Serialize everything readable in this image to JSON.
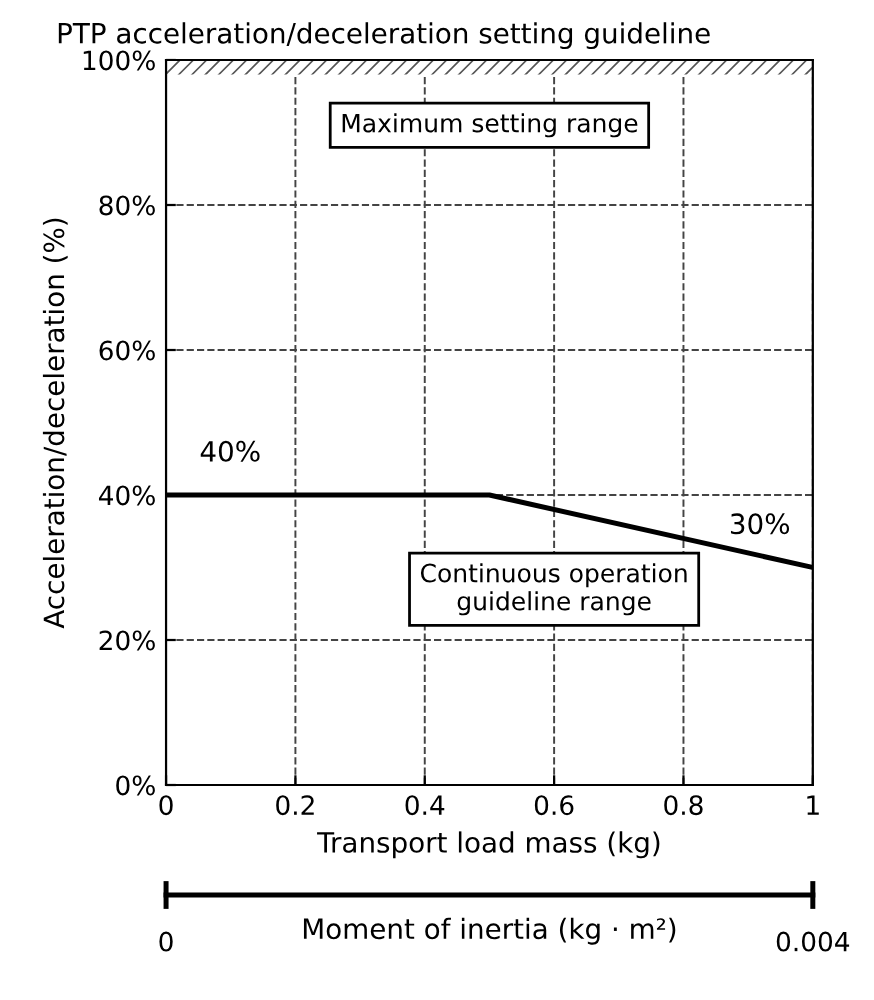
{
  "chart_data": {
    "type": "line",
    "title": "PTP acceleration/deceleration setting guideline",
    "xlabel": "Transport load mass (kg)",
    "ylabel": "Acceleration/deceleration (%)",
    "x2label": "Moment of inertia (kg · m²)",
    "x": [
      0,
      0.5,
      1
    ],
    "series": [
      {
        "color": "#000000",
        "values": [
          40,
          40,
          30
        ],
        "value_labels": [
          "40%",
          null,
          "30%"
        ]
      }
    ],
    "xlim": [
      0,
      1
    ],
    "xticks": [
      0,
      0.2,
      0.4,
      0.6,
      0.8,
      1
    ],
    "ylim": [
      0,
      100
    ],
    "yticks": [
      {
        "value": 0,
        "label": "0%"
      },
      {
        "value": 20,
        "label": "20%"
      },
      {
        "value": 40,
        "label": "40%"
      },
      {
        "value": 60,
        "label": "60%"
      },
      {
        "value": 80,
        "label": "80%"
      },
      {
        "value": 100,
        "label": "100%"
      }
    ],
    "x2lim": [
      0,
      0.004
    ],
    "x2ticks": [
      0,
      0.004
    ],
    "bands": [
      {
        "axis": "y",
        "from": 98,
        "to": 100,
        "color": "#ffffff"
      }
    ],
    "annotations": [
      "Maximum setting range",
      "Continuous operation\nguideline range"
    ],
    "grid": true,
    "line_style": "solid",
    "marker": "none"
  }
}
